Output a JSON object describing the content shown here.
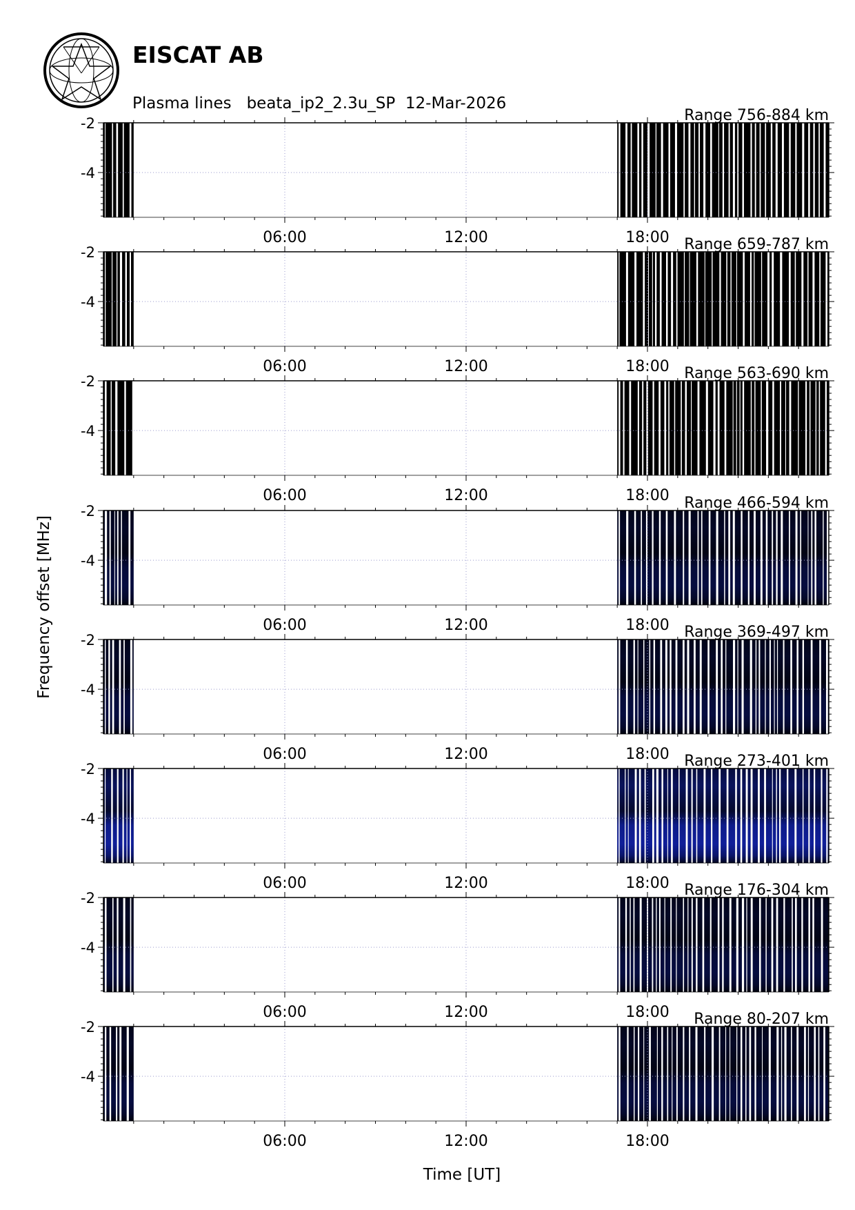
{
  "header": {
    "organization": "EISCAT AB",
    "subtitle": "Plasma lines   beata_ip2_2.3u_SP  12-Mar-2026"
  },
  "icons": {
    "logo": "eiscat-globe-star-logo"
  },
  "chart_data": {
    "type": "heatmap",
    "xlabel": "Time [UT]",
    "ylabel": "Frequency offset [MHz]",
    "x_ticks": [
      "06:00",
      "12:00",
      "18:00"
    ],
    "x_tick_hours": [
      6,
      12,
      18
    ],
    "xlim_hours": [
      0,
      24
    ],
    "y_ticks": [
      -2,
      -4
    ],
    "ylim": [
      -5.8,
      -2
    ],
    "grid": "dotted at major ticks",
    "data_intervals_hours": [
      [
        0.0,
        1.0
      ],
      [
        17.0,
        24.0
      ]
    ],
    "panels": [
      {
        "range_label": "Range 756-884 km",
        "blue_intensity": 0.0
      },
      {
        "range_label": "Range 659-787 km",
        "blue_intensity": 0.0
      },
      {
        "range_label": "Range 563-690 km",
        "blue_intensity": 0.0
      },
      {
        "range_label": "Range 466-594 km",
        "blue_intensity": 0.25
      },
      {
        "range_label": "Range 369-497 km",
        "blue_intensity": 0.25
      },
      {
        "range_label": "Range 273-401 km",
        "blue_intensity": 0.6
      },
      {
        "range_label": "Range 176-304 km",
        "blue_intensity": 0.25
      },
      {
        "range_label": "Range 80-207 km",
        "blue_intensity": 0.25
      }
    ],
    "colors": {
      "signal_low": "#000000",
      "signal_high": "#1a33ff",
      "grid": "#9999cc"
    }
  }
}
